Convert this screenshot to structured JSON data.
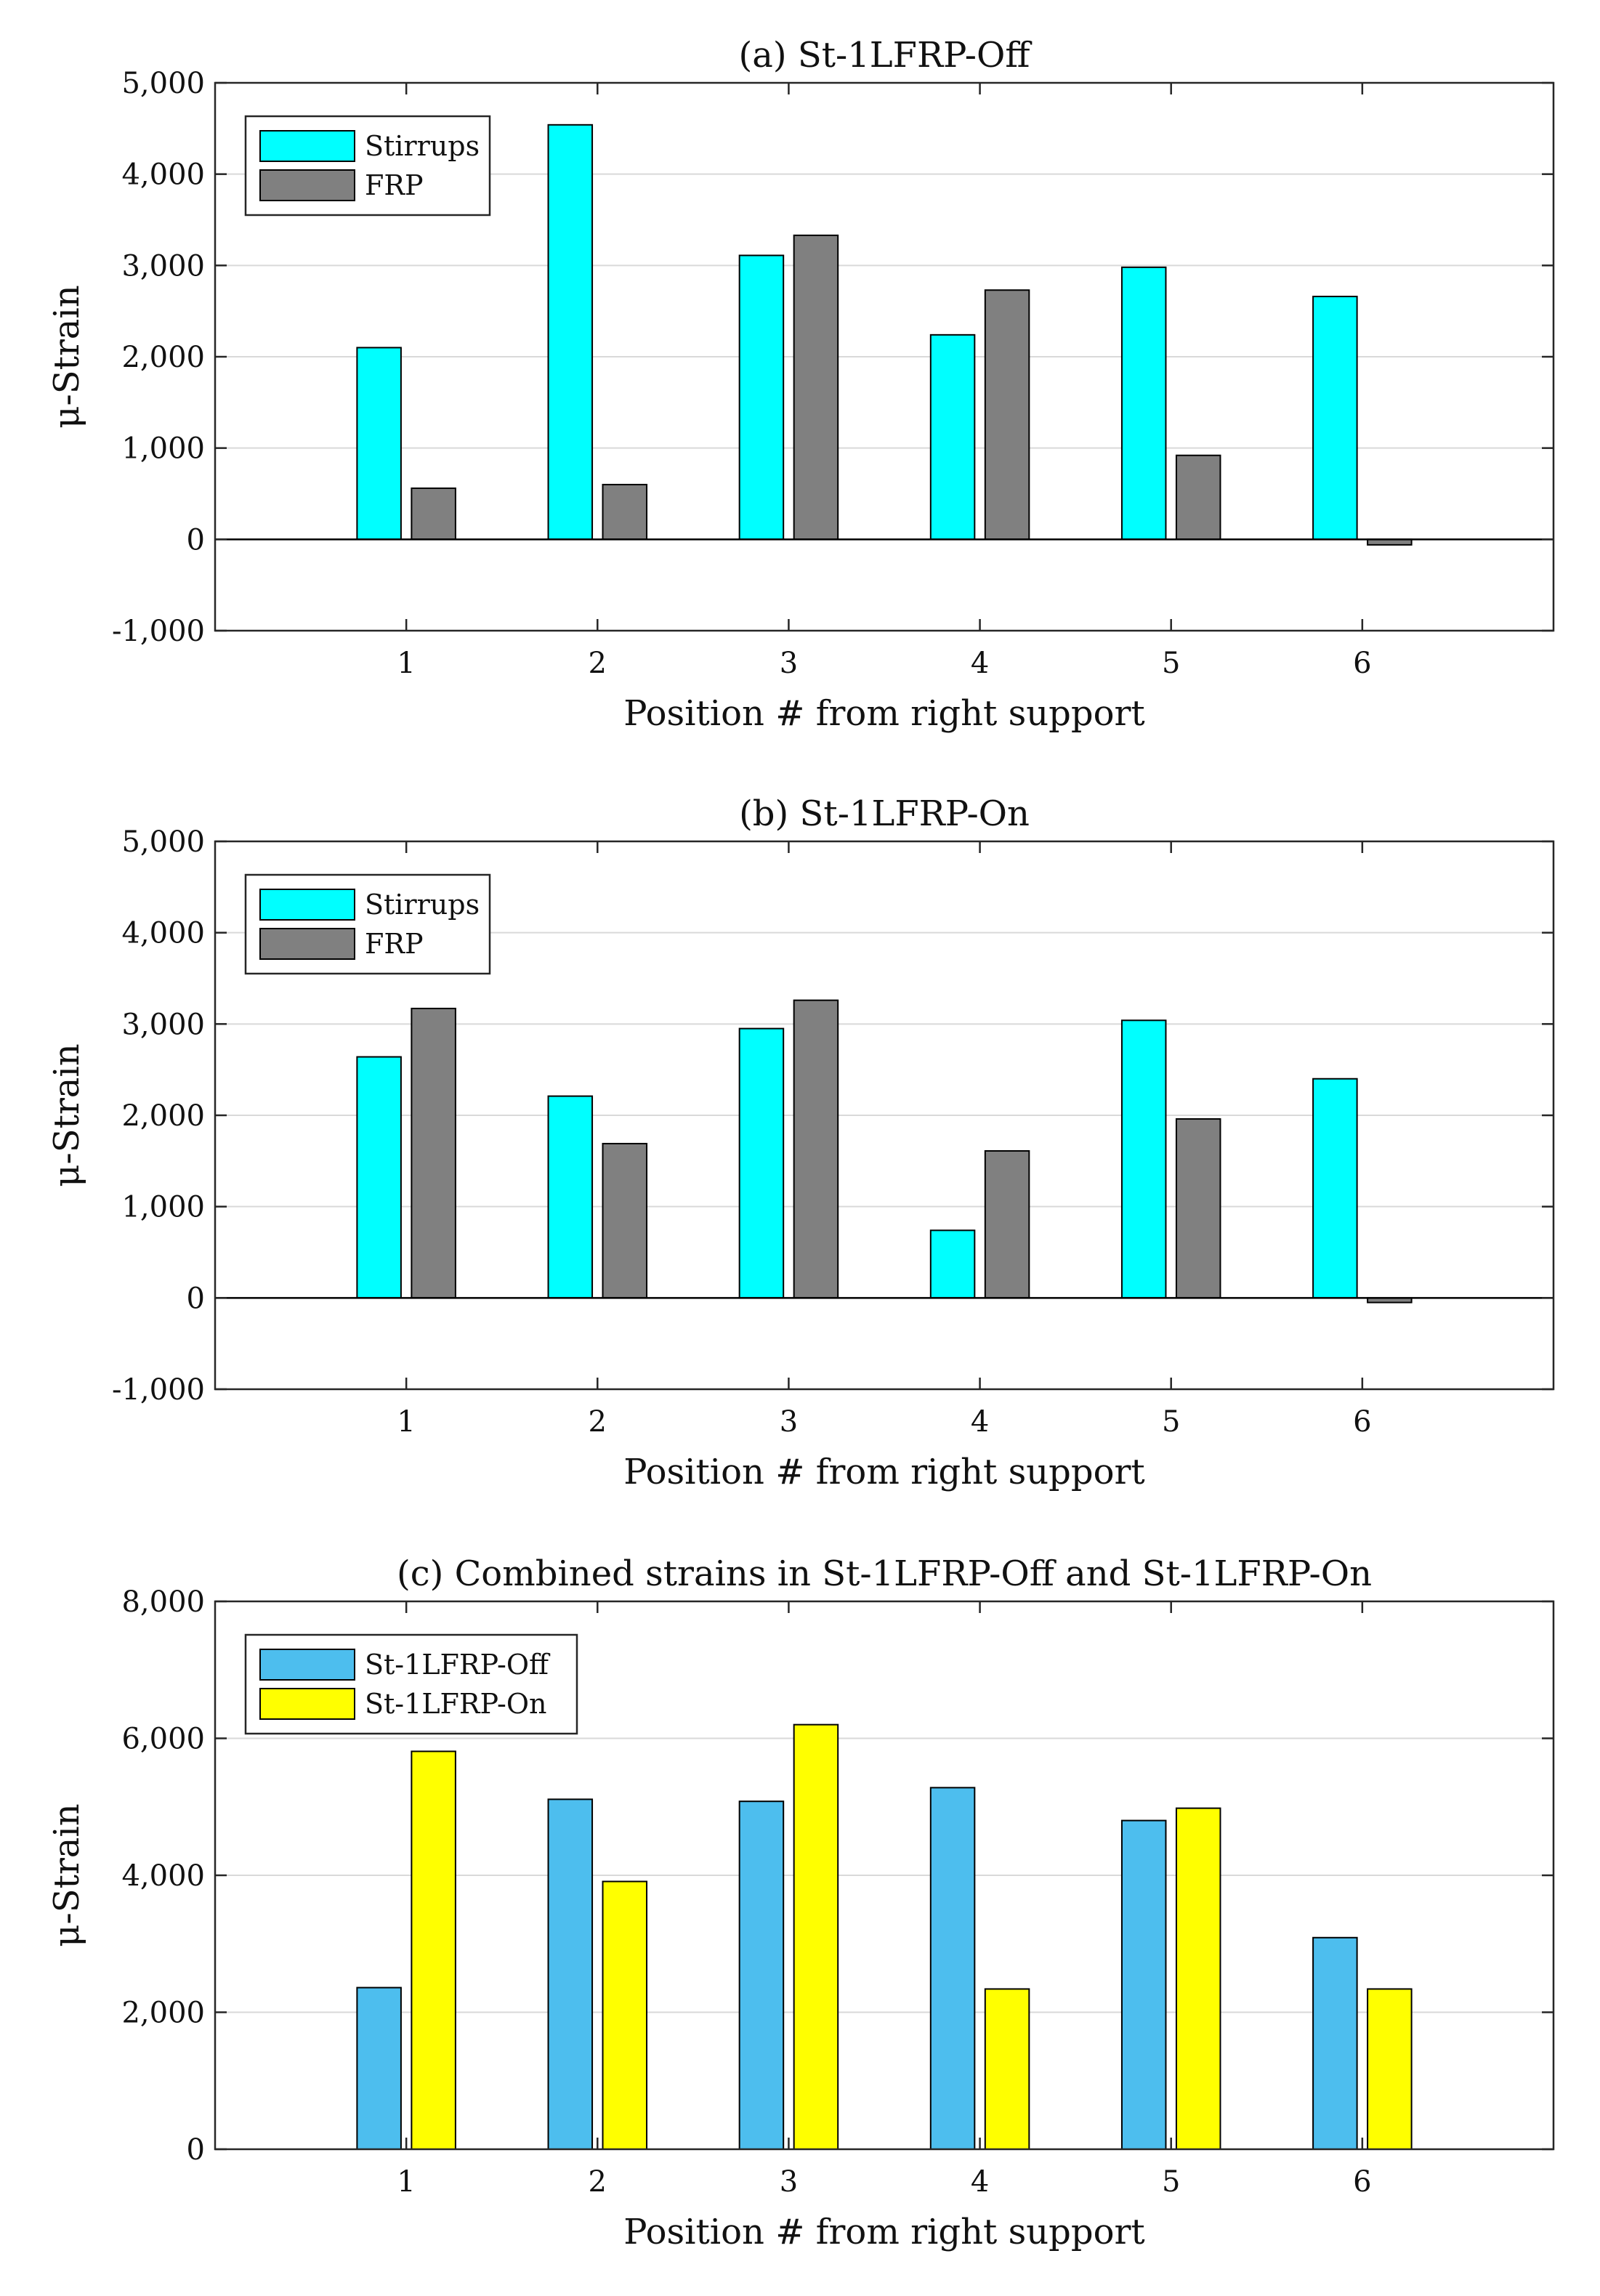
{
  "colors": {
    "stirrups": "#00ffff",
    "frp": "#808080",
    "off": "#4dbeee",
    "on": "#ffff00",
    "grid": "#d9d9d9",
    "axis": "#262626"
  },
  "chart_data": [
    {
      "type": "bar",
      "title": "(a) St-1LFRP-Off",
      "xlabel": "Position # from right support",
      "ylabel": "μ-Strain",
      "categories": [
        "1",
        "2",
        "3",
        "4",
        "5",
        "6"
      ],
      "ylim": [
        -1000,
        5000
      ],
      "yticks": [
        -1000,
        0,
        1000,
        2000,
        3000,
        4000,
        5000
      ],
      "ytick_labels": [
        "-1,000",
        "0",
        "1,000",
        "2,000",
        "3,000",
        "4,000",
        "5,000"
      ],
      "grid": true,
      "legend_position": "top-left",
      "series": [
        {
          "name": "Stirrups",
          "color_key": "stirrups",
          "values": [
            2100,
            4540,
            3110,
            2240,
            2980,
            2660
          ]
        },
        {
          "name": "FRP",
          "color_key": "frp",
          "values": [
            560,
            600,
            3330,
            2730,
            920,
            -60
          ]
        }
      ]
    },
    {
      "type": "bar",
      "title": "(b) St-1LFRP-On",
      "xlabel": "Position # from right support",
      "ylabel": "μ-Strain",
      "categories": [
        "1",
        "2",
        "3",
        "4",
        "5",
        "6"
      ],
      "ylim": [
        -1000,
        5000
      ],
      "yticks": [
        -1000,
        0,
        1000,
        2000,
        3000,
        4000,
        5000
      ],
      "ytick_labels": [
        "-1,000",
        "0",
        "1,000",
        "2,000",
        "3,000",
        "4,000",
        "5,000"
      ],
      "grid": true,
      "legend_position": "top-left",
      "series": [
        {
          "name": "Stirrups",
          "color_key": "stirrups",
          "values": [
            2640,
            2210,
            2950,
            740,
            3040,
            2400
          ]
        },
        {
          "name": "FRP",
          "color_key": "frp",
          "values": [
            3170,
            1690,
            3260,
            1610,
            1960,
            -50
          ]
        }
      ]
    },
    {
      "type": "bar",
      "title": "(c) Combined strains in St-1LFRP-Off and St-1LFRP-On",
      "xlabel": "Position # from right support",
      "ylabel": "μ-Strain",
      "categories": [
        "1",
        "2",
        "3",
        "4",
        "5",
        "6"
      ],
      "ylim": [
        0,
        8000
      ],
      "yticks": [
        0,
        2000,
        4000,
        6000,
        8000
      ],
      "ytick_labels": [
        "0",
        "2,000",
        "4,000",
        "6,000",
        "8,000"
      ],
      "grid": true,
      "legend_position": "top-left",
      "series": [
        {
          "name": "St-1LFRP-Off",
          "color_key": "off",
          "values": [
            2360,
            5110,
            5080,
            5280,
            4800,
            3090
          ]
        },
        {
          "name": "St-1LFRP-On",
          "color_key": "on",
          "values": [
            5810,
            3910,
            6200,
            2340,
            4980,
            2340
          ]
        }
      ]
    }
  ]
}
